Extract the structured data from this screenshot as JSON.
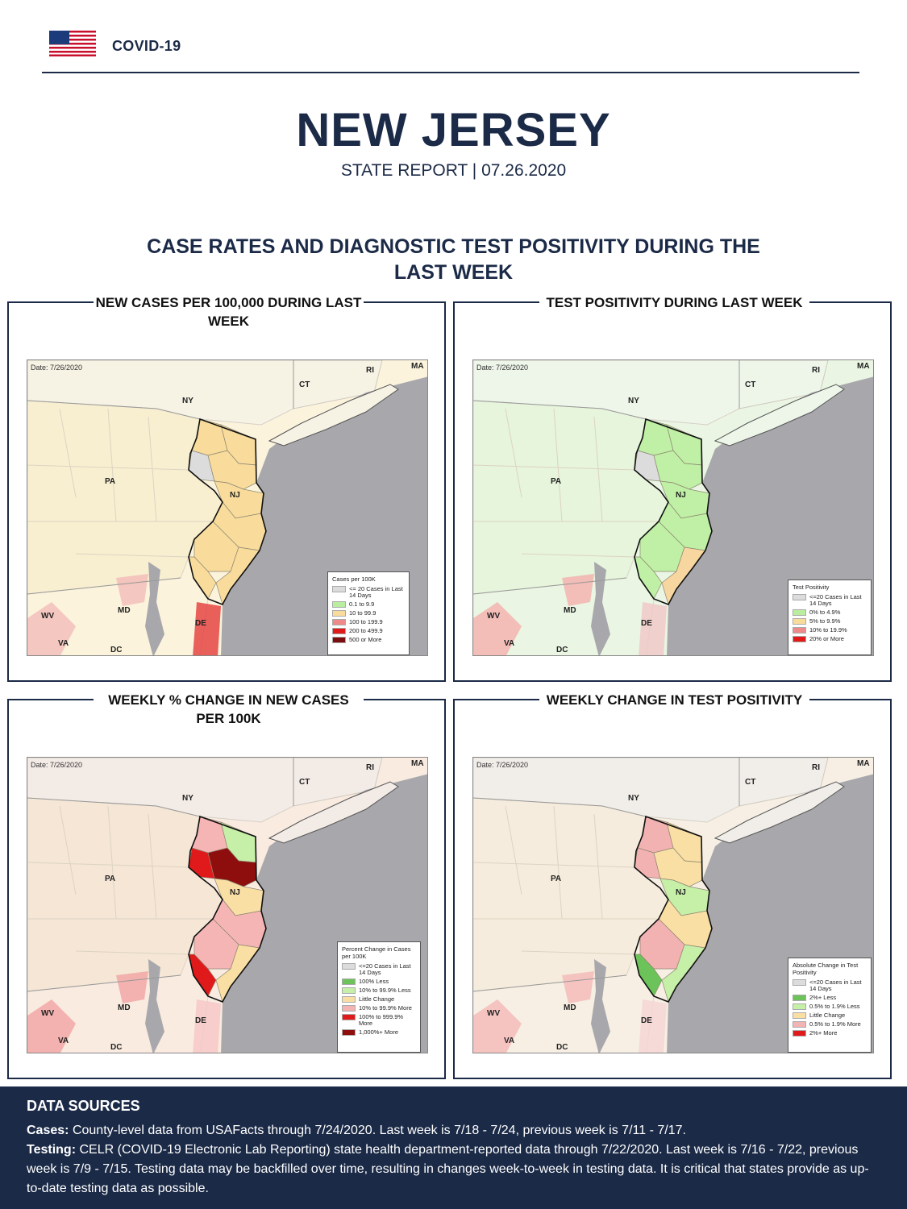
{
  "header": {
    "brand": "COVID-19",
    "state": "NEW JERSEY",
    "subtitle": "STATE REPORT | 07.26.2020"
  },
  "section": {
    "title": "CASE RATES AND DIAGNOSTIC TEST POSITIVITY DURING THE LAST WEEK"
  },
  "map_labels": {
    "date": "Date: 7/26/2020",
    "ny": "NY",
    "ct": "CT",
    "ri": "RI",
    "ma": "MA",
    "pa": "PA",
    "nj": "NJ",
    "md": "MD",
    "de": "DE",
    "wv": "WV",
    "va": "VA",
    "dc": "DC"
  },
  "panels": [
    {
      "title": "NEW CASES PER 100,000 DURING LAST WEEK",
      "legend_title": "Cases per 100K",
      "legend": [
        {
          "label": "<= 20 Cases in Last 14 Days",
          "color": "#dcdcdc"
        },
        {
          "label": "0.1 to 9.9",
          "color": "#b9ee9f"
        },
        {
          "label": "10 to 99.9",
          "color": "#f9dc9c"
        },
        {
          "label": "100 to 199.9",
          "color": "#ee8a8a"
        },
        {
          "label": "200 to 499.9",
          "color": "#e01a1a"
        },
        {
          "label": "500 or More",
          "color": "#7a0e0e"
        }
      ]
    },
    {
      "title": "TEST POSITIVITY DURING LAST WEEK",
      "legend_title": "Test Positivity",
      "legend": [
        {
          "label": "<=20 Cases in Last 14 Days",
          "color": "#dcdcdc"
        },
        {
          "label": "0% to 4.9%",
          "color": "#b9ee9f"
        },
        {
          "label": "5% to 9.9%",
          "color": "#f9dc9c"
        },
        {
          "label": "10% to 19.9%",
          "color": "#ee8a8a"
        },
        {
          "label": "20% or More",
          "color": "#e01a1a"
        }
      ]
    },
    {
      "title": "WEEKLY % CHANGE IN NEW CASES PER 100K",
      "legend_title": "Percent Change in Cases per 100K",
      "legend": [
        {
          "label": "<=20 Cases in Last 14 Days",
          "color": "#dcdcdc"
        },
        {
          "label": "100% Less",
          "color": "#6cc35a"
        },
        {
          "label": "10% to 99.9% Less",
          "color": "#c6efa8"
        },
        {
          "label": "Little Change",
          "color": "#f9dfa4"
        },
        {
          "label": "10% to 99.9% More",
          "color": "#f4b3b3"
        },
        {
          "label": "100% to 999.9% More",
          "color": "#e01a1a"
        },
        {
          "label": "1,000%+ More",
          "color": "#8e0d0d"
        }
      ]
    },
    {
      "title": "WEEKLY CHANGE IN TEST POSITIVITY",
      "legend_title": "Absolute Change in Test Positivity",
      "legend": [
        {
          "label": "<=20 Cases in Last 14 Days",
          "color": "#dcdcdc"
        },
        {
          "label": "2%+ Less",
          "color": "#6cc35a"
        },
        {
          "label": "0.5% to 1.9% Less",
          "color": "#c6efa8"
        },
        {
          "label": "Little Change",
          "color": "#f9dfa4"
        },
        {
          "label": "0.5% to 1.9% More",
          "color": "#f4b3b3"
        },
        {
          "label": "2%+ More",
          "color": "#e01a1a"
        }
      ]
    }
  ],
  "footer": {
    "title": "DATA SOURCES",
    "cases_label": "Cases:",
    "cases_text": "County-level data from USAFacts through 7/24/2020. Last week is 7/18 - 7/24, previous week is 7/11 - 7/17.",
    "testing_label": "Testing:",
    "testing_text": "CELR (COVID-19 Electronic Lab Reporting) state health department-reported data through 7/22/2020. Last week is 7/16 - 7/22, previous week is 7/9 - 7/15. Testing data may be backfilled over time, resulting in changes week-to-week in testing data. It is critical that states provide as up-to-date testing data as possible."
  }
}
